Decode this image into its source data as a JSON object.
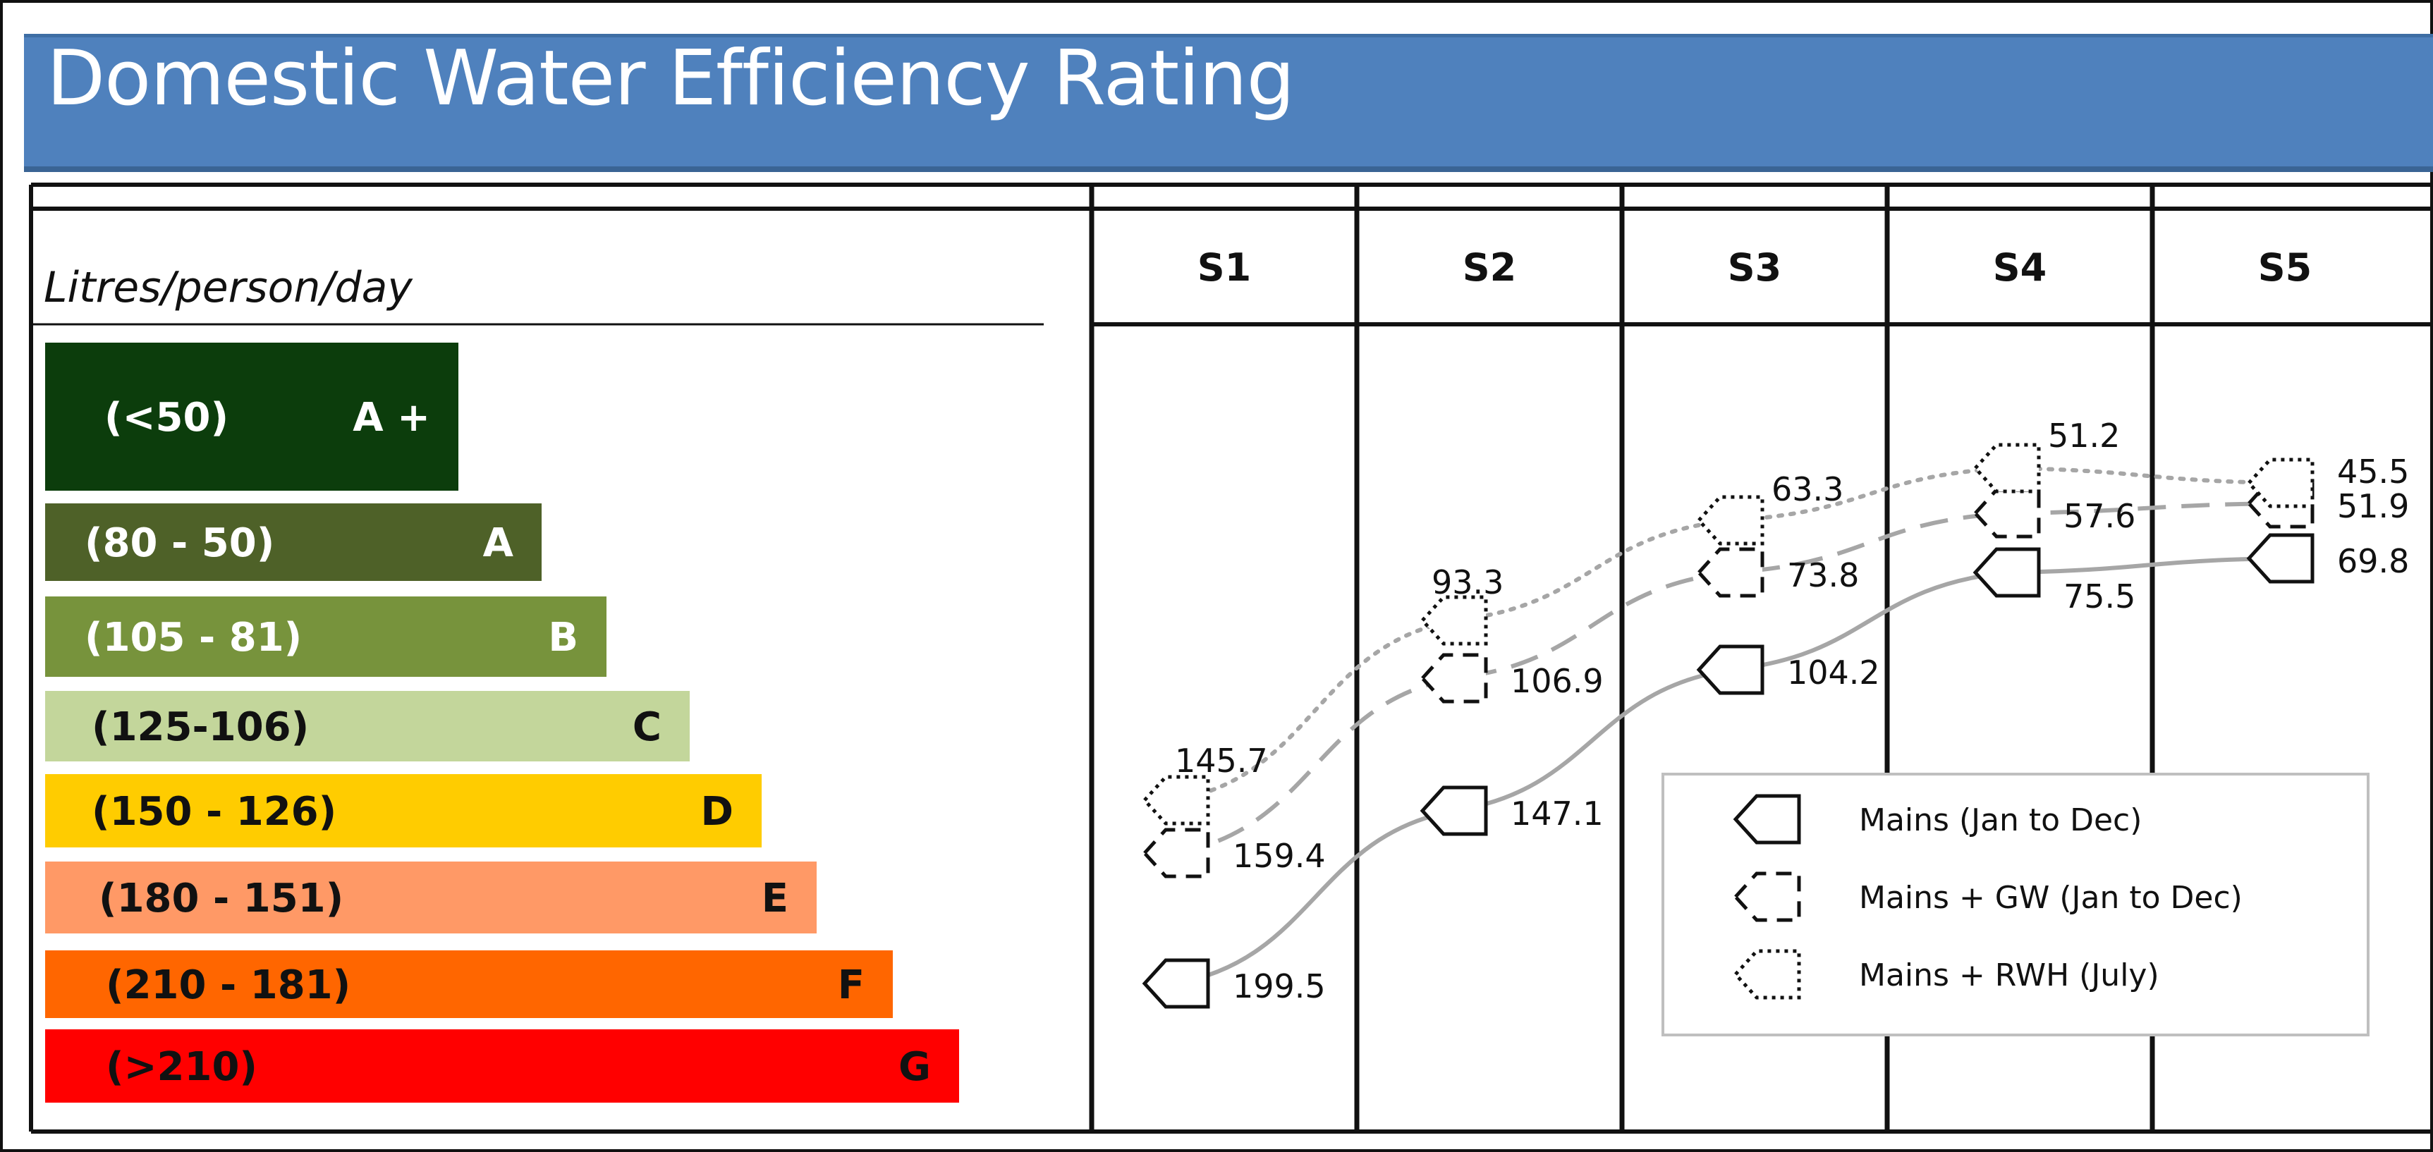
{
  "title": "Domestic Water Efficiency Rating",
  "chart_data": {
    "type": "line",
    "title": "Domestic Water Efficiency Rating",
    "ylabel": "Litres/person/day",
    "y_axis": "non-linear (positioned by rating band)",
    "categories": [
      "S1",
      "S2",
      "S3",
      "S4",
      "S5"
    ],
    "rating_bands": [
      {
        "range": "(<50)",
        "grade": "A +",
        "color": "#0c3d0c",
        "text_color": "#ffffff"
      },
      {
        "range": "(80 - 50)",
        "grade": "A",
        "color": "#4e6128",
        "text_color": "#ffffff"
      },
      {
        "range": "(105 - 81)",
        "grade": "B",
        "color": "#77933c",
        "text_color": "#ffffff"
      },
      {
        "range": "(125-106)",
        "grade": "C",
        "color": "#c3d69b",
        "text_color": "#111111"
      },
      {
        "range": "(150 - 126)",
        "grade": "D",
        "color": "#ffcc00",
        "text_color": "#111111"
      },
      {
        "range": "(180 - 151)",
        "grade": "E",
        "color": "#ff9966",
        "text_color": "#111111"
      },
      {
        "range": "(210 - 181)",
        "grade": "F",
        "color": "#ff6600",
        "text_color": "#111111"
      },
      {
        "range": "(>210)",
        "grade": "G",
        "color": "#ff0000",
        "text_color": "#111111"
      }
    ],
    "series": [
      {
        "name": "Mains (Jan to Dec)",
        "style": "solid",
        "color": "#a6a6a6",
        "values": [
          199.5,
          147.1,
          104.2,
          75.5,
          69.8
        ]
      },
      {
        "name": "Mains + GW (Jan to Dec)",
        "style": "dashed",
        "color": "#a6a6a6",
        "values": [
          159.4,
          106.9,
          73.8,
          57.6,
          51.9
        ]
      },
      {
        "name": "Mains + RWH (July)",
        "style": "dotted",
        "color": "#a6a6a6",
        "values": [
          145.7,
          93.3,
          63.3,
          51.2,
          45.5
        ]
      }
    ],
    "legend": {
      "position": "bottom-right"
    },
    "grid": false
  }
}
